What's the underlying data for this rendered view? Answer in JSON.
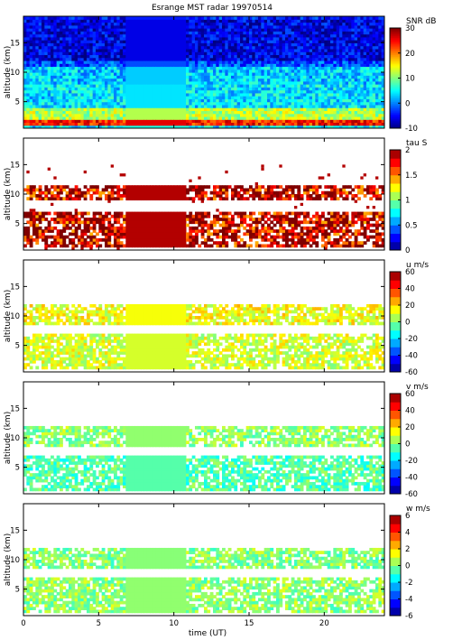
{
  "figure": {
    "title": "Esrange MST radar 19970514",
    "xlabel": "time (UT)"
  },
  "chart_data": [
    {
      "type": "heatmap",
      "parameter": "snr",
      "ylabel": "altitude (km)",
      "colorbar_label": "SNR dB",
      "clim": [
        -10,
        30
      ],
      "colorbar_ticks": [
        -10,
        0,
        10,
        20,
        30
      ],
      "xlim": [
        0,
        24
      ],
      "ylim": [
        0.5,
        19.5
      ],
      "xticks": [
        0,
        5,
        10,
        15,
        20
      ],
      "yticks": [
        5,
        10,
        15
      ],
      "xtick_labels_shown": false,
      "data_gap_hours": [
        6.7,
        10.6
      ],
      "layers": [
        {
          "altitude_km": [
            1,
            2
          ],
          "value": 24
        },
        {
          "altitude_km": [
            2,
            4
          ],
          "value": 12
        },
        {
          "altitude_km": [
            8,
            11
          ],
          "value": 3
        },
        {
          "altitude_km": [
            12,
            19
          ],
          "value": -6
        }
      ]
    },
    {
      "type": "heatmap",
      "parameter": "tau",
      "ylabel": "altitude (km)",
      "colorbar_label": "tau S",
      "clim": [
        0,
        2
      ],
      "colorbar_ticks": [
        0,
        0.5,
        1,
        1.5,
        2
      ],
      "xlim": [
        0,
        24
      ],
      "ylim": [
        0.5,
        19.5
      ],
      "xticks": [
        0,
        5,
        10,
        15,
        20
      ],
      "yticks": [
        5,
        10,
        15
      ],
      "xtick_labels_shown": false,
      "data_gap_hours": [
        6.7,
        10.6
      ],
      "layers": [
        {
          "altitude_km": [
            1,
            7
          ],
          "value": 1.9
        },
        {
          "altitude_km": [
            9,
            11.5
          ],
          "value": 1.9
        }
      ]
    },
    {
      "type": "heatmap",
      "parameter": "u",
      "ylabel": "altitude (km)",
      "colorbar_label": "u m/s",
      "clim": [
        -60,
        60
      ],
      "colorbar_ticks": [
        -60,
        -40,
        -20,
        0,
        20,
        40,
        60
      ],
      "xlim": [
        0,
        24
      ],
      "ylim": [
        0.5,
        19.5
      ],
      "xticks": [
        0,
        5,
        10,
        15,
        20
      ],
      "yticks": [
        5,
        10,
        15
      ],
      "xtick_labels_shown": false,
      "data_gap_hours": [
        6.7,
        10.6
      ],
      "layers": [
        {
          "altitude_km": [
            1,
            7
          ],
          "value": 10
        },
        {
          "altitude_km": [
            8.5,
            12
          ],
          "value": 14
        }
      ]
    },
    {
      "type": "heatmap",
      "parameter": "v",
      "ylabel": "altitude (km)",
      "colorbar_label": "v m/s",
      "clim": [
        -60,
        60
      ],
      "colorbar_ticks": [
        -60,
        -40,
        -20,
        0,
        20,
        40,
        60
      ],
      "xlim": [
        0,
        24
      ],
      "ylim": [
        0.5,
        19.5
      ],
      "xticks": [
        0,
        5,
        10,
        15,
        20
      ],
      "yticks": [
        5,
        10,
        15
      ],
      "xtick_labels_shown": false,
      "data_gap_hours": [
        6.7,
        10.6
      ],
      "layers": [
        {
          "altitude_km": [
            1,
            7
          ],
          "value": -5
        },
        {
          "altitude_km": [
            8.5,
            12
          ],
          "value": 2
        }
      ]
    },
    {
      "type": "heatmap",
      "parameter": "w",
      "ylabel": "altitude (km)",
      "colorbar_label": "w m/s",
      "clim": [
        -6,
        6
      ],
      "colorbar_ticks": [
        -6,
        -4,
        -2,
        0,
        2,
        4,
        6
      ],
      "xlim": [
        0,
        24
      ],
      "ylim": [
        0.5,
        19.5
      ],
      "xticks": [
        0,
        5,
        10,
        15,
        20
      ],
      "yticks": [
        5,
        10,
        15
      ],
      "xtick_labels_shown": true,
      "data_gap_hours": [
        6.7,
        10.6
      ],
      "layers": [
        {
          "altitude_km": [
            1,
            7
          ],
          "value": 0.2
        },
        {
          "altitude_km": [
            8.5,
            12
          ],
          "value": 0.1
        }
      ]
    }
  ]
}
